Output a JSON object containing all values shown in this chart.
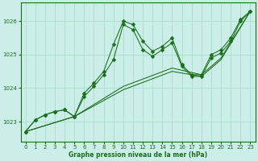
{
  "title": "Graphe pression niveau de la mer (hPa)",
  "background_color": "#cceee8",
  "grid_color": "#aaddcc",
  "line_color": "#1a6e1a",
  "xlim": [
    -0.5,
    23.5
  ],
  "ylim": [
    1022.4,
    1026.55
  ],
  "yticks": [
    1023,
    1024,
    1025,
    1026
  ],
  "xticks": [
    0,
    1,
    2,
    3,
    4,
    5,
    6,
    7,
    8,
    9,
    10,
    11,
    12,
    13,
    14,
    15,
    16,
    17,
    18,
    19,
    20,
    21,
    22,
    23
  ],
  "series": [
    {
      "x": [
        0,
        1,
        2,
        3,
        4,
        5,
        6,
        7,
        8,
        9,
        10,
        11,
        12,
        13,
        14,
        15,
        16,
        17,
        18,
        19,
        20,
        21,
        22,
        23
      ],
      "y": [
        1022.7,
        1023.05,
        1023.2,
        1023.3,
        1023.35,
        1023.15,
        1023.85,
        1024.15,
        1024.5,
        1025.3,
        1026.0,
        1025.9,
        1025.4,
        1025.1,
        1025.25,
        1025.5,
        1024.7,
        1024.4,
        1024.4,
        1025.0,
        1025.15,
        1025.5,
        1026.05,
        1026.3
      ],
      "marker": "D",
      "markersize": 2.5
    },
    {
      "x": [
        0,
        1,
        2,
        3,
        4,
        5,
        6,
        7,
        8,
        9,
        10,
        11,
        12,
        13,
        14,
        15,
        16,
        17,
        18,
        19,
        20,
        21,
        22,
        23
      ],
      "y": [
        1022.7,
        1023.05,
        1023.2,
        1023.3,
        1023.35,
        1023.15,
        1023.75,
        1024.05,
        1024.4,
        1024.85,
        1025.9,
        1025.75,
        1025.15,
        1024.95,
        1025.15,
        1025.35,
        1024.65,
        1024.35,
        1024.35,
        1024.9,
        1025.05,
        1025.4,
        1026.0,
        1026.3
      ],
      "marker": "D",
      "markersize": 2.5
    },
    {
      "x": [
        0,
        5,
        10,
        15,
        18,
        20,
        23
      ],
      "y": [
        1022.7,
        1023.15,
        1024.05,
        1024.6,
        1024.4,
        1024.9,
        1026.3
      ],
      "marker": null,
      "markersize": 0
    },
    {
      "x": [
        0,
        5,
        10,
        15,
        18,
        20,
        23
      ],
      "y": [
        1022.7,
        1023.15,
        1023.95,
        1024.5,
        1024.35,
        1024.85,
        1026.3
      ],
      "marker": null,
      "markersize": 0
    }
  ]
}
